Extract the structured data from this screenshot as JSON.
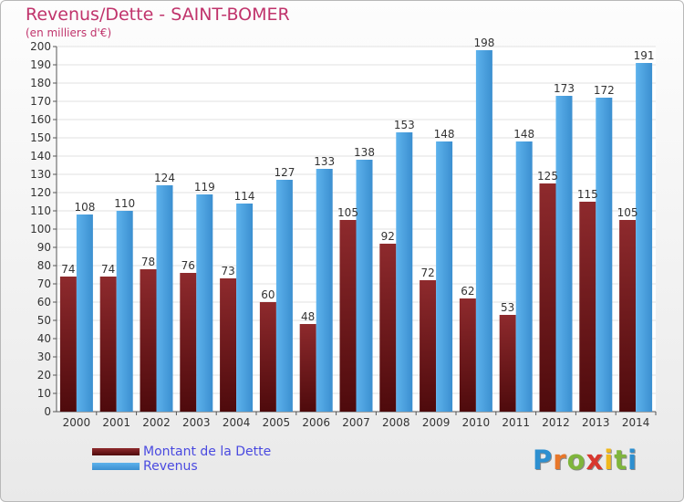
{
  "header": {
    "title": "Revenus/Dette - SAINT-BOMER",
    "subtitle": "(en milliers d'€)"
  },
  "legend": {
    "dette_label": "Montant de la Dette",
    "revenus_label": "Revenus"
  },
  "logo": {
    "letters": [
      "P",
      "r",
      "o",
      "x",
      "i",
      "t",
      "i"
    ],
    "colors": [
      "#2d8fd0",
      "#e8772a",
      "#7fb53c",
      "#d8382f",
      "#f0b81c",
      "#7fb53c",
      "#2d8fd0"
    ]
  },
  "colors": {
    "dette": "#7a1a1c",
    "revenus": "#4da3e0"
  },
  "chart_data": {
    "type": "bar",
    "title": "Revenus/Dette - SAINT-BOMER",
    "subtitle": "(en milliers d'€)",
    "categories": [
      "2000",
      "2001",
      "2002",
      "2003",
      "2004",
      "2005",
      "2006",
      "2007",
      "2008",
      "2009",
      "2010",
      "2011",
      "2012",
      "2013",
      "2014"
    ],
    "series": [
      {
        "name": "Montant de la Dette",
        "values": [
          74,
          74,
          78,
          76,
          73,
          60,
          48,
          105,
          92,
          72,
          62,
          53,
          125,
          115,
          105
        ]
      },
      {
        "name": "Revenus",
        "values": [
          108,
          110,
          124,
          119,
          114,
          127,
          133,
          138,
          153,
          148,
          198,
          148,
          173,
          172,
          191
        ]
      }
    ],
    "ylim": [
      0,
      200
    ],
    "ytick_step": 10,
    "grid": true,
    "legend_position": "bottom-left"
  }
}
